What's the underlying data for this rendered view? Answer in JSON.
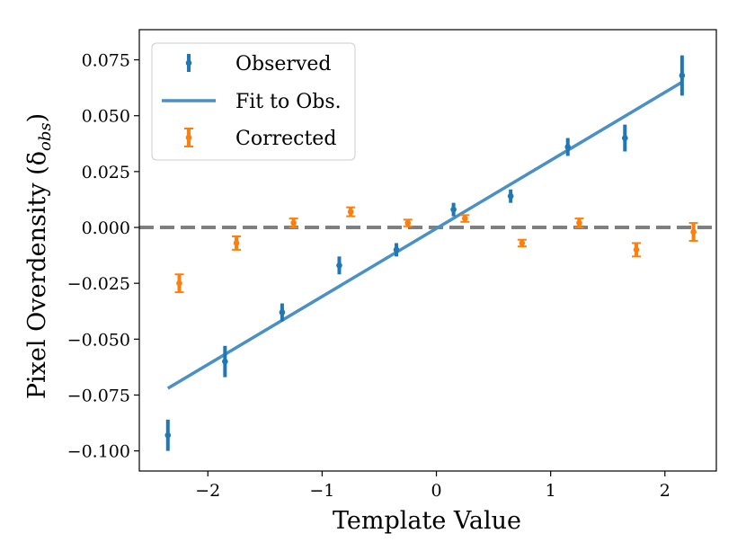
{
  "chart_data": {
    "type": "scatter",
    "xlabel": "Template Value",
    "ylabel": "Pixel Overdensity (δ",
    "ylabel_sub": "obs",
    "ylabel_close": ")",
    "xlim": [
      -2.6,
      2.45
    ],
    "ylim": [
      -0.109,
      0.0885
    ],
    "xticks": [
      -2,
      -1,
      0,
      1,
      2
    ],
    "xtick_labels": [
      "−2",
      "−1",
      "0",
      "1",
      "2"
    ],
    "yticks": [
      -0.1,
      -0.075,
      -0.05,
      -0.025,
      0.0,
      0.025,
      0.05,
      0.075
    ],
    "ytick_labels": [
      "−0.100",
      "−0.075",
      "−0.050",
      "−0.025",
      "0.000",
      "0.025",
      "0.050",
      "0.075"
    ],
    "reference_line": {
      "y": 0.0,
      "style": "dashed",
      "color": "#7f7f7f"
    },
    "series": [
      {
        "name": "Observed",
        "color": "#1f77b4",
        "x": [
          -2.35,
          -1.85,
          -1.35,
          -0.85,
          -0.35,
          0.15,
          0.65,
          1.15,
          1.65,
          2.15
        ],
        "y": [
          -0.093,
          -0.06,
          -0.038,
          -0.017,
          -0.01,
          0.008,
          0.014,
          0.036,
          0.04,
          0.068
        ],
        "yerr": [
          0.007,
          0.007,
          0.004,
          0.004,
          0.003,
          0.003,
          0.003,
          0.004,
          0.006,
          0.009
        ]
      },
      {
        "name": "Fit to Obs.",
        "type": "line",
        "color": "#4a90c4",
        "x": [
          -2.35,
          2.15
        ],
        "y": [
          -0.072,
          0.065
        ]
      },
      {
        "name": "Corrected",
        "color": "#ff7f0e",
        "x": [
          -2.25,
          -1.75,
          -1.25,
          -0.75,
          -0.25,
          0.25,
          0.75,
          1.25,
          1.75,
          2.25
        ],
        "y": [
          -0.025,
          -0.007,
          0.002,
          0.007,
          0.002,
          0.004,
          -0.007,
          0.002,
          -0.01,
          -0.002
        ],
        "yerr": [
          0.004,
          0.003,
          0.002,
          0.002,
          0.0015,
          0.0015,
          0.0015,
          0.002,
          0.003,
          0.004
        ]
      }
    ],
    "legend": {
      "location": "top-left",
      "entries": [
        "Observed",
        "Fit to Obs.",
        "Corrected"
      ]
    }
  }
}
